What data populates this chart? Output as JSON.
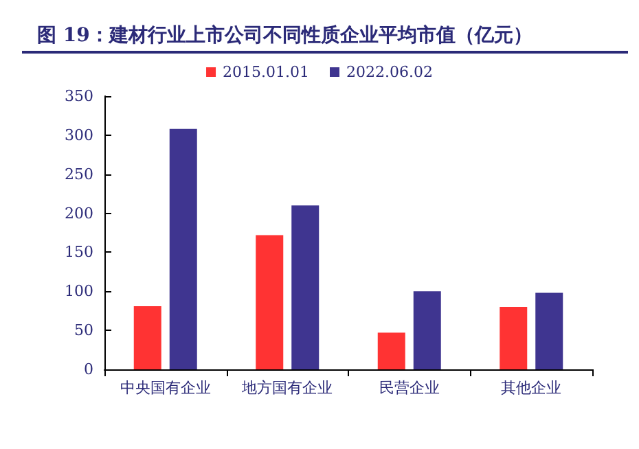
{
  "chart_data": {
    "type": "bar",
    "title": "图 19：建材行业上市公司不同性质企业平均市值（亿元）",
    "categories": [
      "中央国有企业",
      "地方国有企业",
      "民营企业",
      "其他企业"
    ],
    "series": [
      {
        "name": "2015.01.01",
        "color": "#ff3333",
        "values": [
          81,
          172,
          47,
          80
        ]
      },
      {
        "name": "2022.06.02",
        "color": "#3f3590",
        "values": [
          308,
          210,
          100,
          98
        ]
      }
    ],
    "ylim": [
      0,
      350
    ],
    "yticks": [
      0,
      50,
      100,
      150,
      200,
      250,
      300,
      350
    ],
    "grid": false,
    "legend": "top"
  }
}
